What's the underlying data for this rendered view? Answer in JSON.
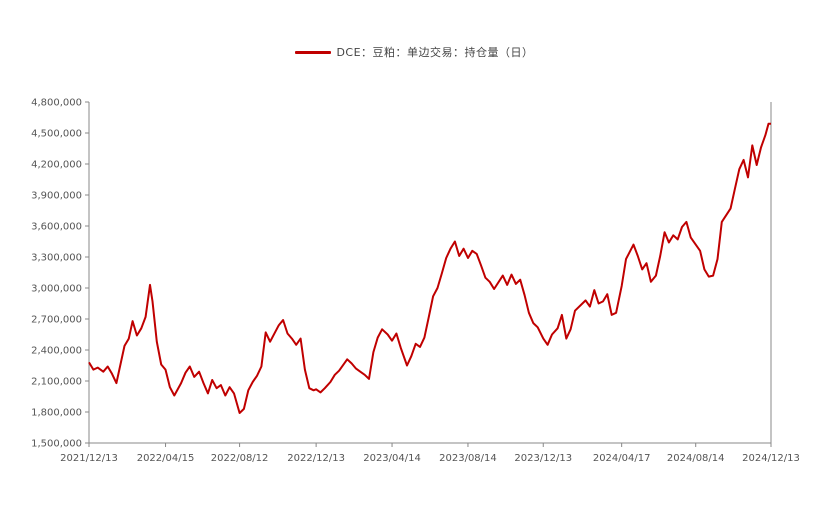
{
  "chart_data": {
    "type": "line",
    "title": "",
    "legend": {
      "label": "DCE：豆粕：单边交易：持仓量（日）",
      "placement": "top-center"
    },
    "xlabel": "",
    "ylabel": "",
    "ylim": [
      1500000,
      4800000
    ],
    "grid": false,
    "y_ticks": [
      "1,500,000",
      "1,800,000",
      "2,100,000",
      "2,400,000",
      "2,700,000",
      "3,000,000",
      "3,300,000",
      "3,600,000",
      "3,900,000",
      "4,200,000",
      "4,500,000",
      "4,800,000"
    ],
    "y_tick_values": [
      1500000,
      1800000,
      2100000,
      2400000,
      2700000,
      3000000,
      3300000,
      3600000,
      3900000,
      4200000,
      4500000,
      4800000
    ],
    "x_ticks": [
      "2021/12/13",
      "2022/04/15",
      "2022/08/12",
      "2022/12/13",
      "2023/04/14",
      "2023/08/14",
      "2023/12/13",
      "2024/04/17",
      "2024/08/14",
      "2024/12/13"
    ],
    "series": [
      {
        "name": "DCE：豆粕：单边交易：持仓量（日）",
        "color": "#c00000",
        "points": [
          [
            "2021/12/13",
            2280000
          ],
          [
            "2021/12/20",
            2210000
          ],
          [
            "2021/12/27",
            2230000
          ],
          [
            "2022/01/05",
            2190000
          ],
          [
            "2022/01/12",
            2240000
          ],
          [
            "2022/01/19",
            2170000
          ],
          [
            "2022/01/26",
            2080000
          ],
          [
            "2022/02/08",
            2440000
          ],
          [
            "2022/02/15",
            2510000
          ],
          [
            "2022/02/21",
            2680000
          ],
          [
            "2022/02/28",
            2540000
          ],
          [
            "2022/03/07",
            2610000
          ],
          [
            "2022/03/14",
            2720000
          ],
          [
            "2022/03/21",
            3030000
          ],
          [
            "2022/03/25",
            2870000
          ],
          [
            "2022/04/01",
            2480000
          ],
          [
            "2022/04/08",
            2260000
          ],
          [
            "2022/04/15",
            2210000
          ],
          [
            "2022/04/22",
            2040000
          ],
          [
            "2022/04/29",
            1960000
          ],
          [
            "2022/05/10",
            2080000
          ],
          [
            "2022/05/17",
            2180000
          ],
          [
            "2022/05/24",
            2240000
          ],
          [
            "2022/05/31",
            2140000
          ],
          [
            "2022/06/08",
            2190000
          ],
          [
            "2022/06/15",
            2080000
          ],
          [
            "2022/06/22",
            1980000
          ],
          [
            "2022/06/29",
            2110000
          ],
          [
            "2022/07/06",
            2030000
          ],
          [
            "2022/07/13",
            2060000
          ],
          [
            "2022/07/20",
            1960000
          ],
          [
            "2022/07/27",
            2040000
          ],
          [
            "2022/08/03",
            1980000
          ],
          [
            "2022/08/12",
            1790000
          ],
          [
            "2022/08/19",
            1830000
          ],
          [
            "2022/08/26",
            2010000
          ],
          [
            "2022/09/02",
            2090000
          ],
          [
            "2022/09/09",
            2150000
          ],
          [
            "2022/09/16",
            2240000
          ],
          [
            "2022/09/23",
            2570000
          ],
          [
            "2022/09/30",
            2480000
          ],
          [
            "2022/10/14",
            2640000
          ],
          [
            "2022/10/21",
            2690000
          ],
          [
            "2022/10/28",
            2560000
          ],
          [
            "2022/11/04",
            2510000
          ],
          [
            "2022/11/11",
            2450000
          ],
          [
            "2022/11/18",
            2510000
          ],
          [
            "2022/11/25",
            2210000
          ],
          [
            "2022/12/02",
            2030000
          ],
          [
            "2022/12/09",
            2010000
          ],
          [
            "2022/12/13",
            2020000
          ],
          [
            "2022/12/20",
            1990000
          ],
          [
            "2022/12/27",
            2030000
          ],
          [
            "2023/01/05",
            2090000
          ],
          [
            "2023/01/12",
            2160000
          ],
          [
            "2023/01/19",
            2200000
          ],
          [
            "2023/02/01",
            2310000
          ],
          [
            "2023/02/08",
            2270000
          ],
          [
            "2023/02/15",
            2220000
          ],
          [
            "2023/02/22",
            2190000
          ],
          [
            "2023/03/01",
            2160000
          ],
          [
            "2023/03/08",
            2120000
          ],
          [
            "2023/03/15",
            2380000
          ],
          [
            "2023/03/22",
            2520000
          ],
          [
            "2023/03/29",
            2600000
          ],
          [
            "2023/04/07",
            2550000
          ],
          [
            "2023/04/14",
            2490000
          ],
          [
            "2023/04/21",
            2560000
          ],
          [
            "2023/04/28",
            2420000
          ],
          [
            "2023/05/08",
            2250000
          ],
          [
            "2023/05/15",
            2340000
          ],
          [
            "2023/05/22",
            2460000
          ],
          [
            "2023/05/29",
            2430000
          ],
          [
            "2023/06/05",
            2520000
          ],
          [
            "2023/06/12",
            2720000
          ],
          [
            "2023/06/19",
            2920000
          ],
          [
            "2023/06/26",
            3000000
          ],
          [
            "2023/07/03",
            3140000
          ],
          [
            "2023/07/10",
            3290000
          ],
          [
            "2023/07/17",
            3380000
          ],
          [
            "2023/07/24",
            3450000
          ],
          [
            "2023/07/31",
            3310000
          ],
          [
            "2023/08/07",
            3380000
          ],
          [
            "2023/08/14",
            3290000
          ],
          [
            "2023/08/21",
            3360000
          ],
          [
            "2023/08/28",
            3330000
          ],
          [
            "2023/09/04",
            3220000
          ],
          [
            "2023/09/11",
            3100000
          ],
          [
            "2023/09/18",
            3060000
          ],
          [
            "2023/09/25",
            2990000
          ],
          [
            "2023/10/09",
            3120000
          ],
          [
            "2023/10/16",
            3030000
          ],
          [
            "2023/10/23",
            3130000
          ],
          [
            "2023/10/30",
            3040000
          ],
          [
            "2023/11/06",
            3080000
          ],
          [
            "2023/11/13",
            2930000
          ],
          [
            "2023/11/20",
            2760000
          ],
          [
            "2023/11/27",
            2660000
          ],
          [
            "2023/12/04",
            2620000
          ],
          [
            "2023/12/13",
            2510000
          ],
          [
            "2023/12/20",
            2450000
          ],
          [
            "2023/12/27",
            2550000
          ],
          [
            "2024/01/05",
            2610000
          ],
          [
            "2024/01/12",
            2740000
          ],
          [
            "2024/01/19",
            2510000
          ],
          [
            "2024/01/26",
            2600000
          ],
          [
            "2024/02/02",
            2780000
          ],
          [
            "2024/02/19",
            2880000
          ],
          [
            "2024/02/26",
            2820000
          ],
          [
            "2024/03/04",
            2980000
          ],
          [
            "2024/03/11",
            2850000
          ],
          [
            "2024/03/18",
            2870000
          ],
          [
            "2024/03/25",
            2940000
          ],
          [
            "2024/04/01",
            2740000
          ],
          [
            "2024/04/08",
            2760000
          ],
          [
            "2024/04/17",
            3020000
          ],
          [
            "2024/04/24",
            3280000
          ],
          [
            "2024/05/06",
            3420000
          ],
          [
            "2024/05/13",
            3310000
          ],
          [
            "2024/05/20",
            3180000
          ],
          [
            "2024/05/27",
            3240000
          ],
          [
            "2024/06/03",
            3060000
          ],
          [
            "2024/06/11",
            3120000
          ],
          [
            "2024/06/18",
            3310000
          ],
          [
            "2024/06/25",
            3540000
          ],
          [
            "2024/07/02",
            3440000
          ],
          [
            "2024/07/09",
            3510000
          ],
          [
            "2024/07/16",
            3470000
          ],
          [
            "2024/07/23",
            3590000
          ],
          [
            "2024/07/30",
            3640000
          ],
          [
            "2024/08/06",
            3490000
          ],
          [
            "2024/08/14",
            3420000
          ],
          [
            "2024/08/21",
            3360000
          ],
          [
            "2024/08/28",
            3180000
          ],
          [
            "2024/09/04",
            3110000
          ],
          [
            "2024/09/11",
            3120000
          ],
          [
            "2024/09/18",
            3280000
          ],
          [
            "2024/09/25",
            3640000
          ],
          [
            "2024/10/09",
            3770000
          ],
          [
            "2024/10/16",
            3960000
          ],
          [
            "2024/10/23",
            4150000
          ],
          [
            "2024/10/30",
            4240000
          ],
          [
            "2024/11/06",
            4070000
          ],
          [
            "2024/11/13",
            4380000
          ],
          [
            "2024/11/20",
            4190000
          ],
          [
            "2024/11/27",
            4360000
          ],
          [
            "2024/12/04",
            4480000
          ],
          [
            "2024/12/09",
            4590000
          ],
          [
            "2024/12/13",
            4590000
          ]
        ]
      }
    ]
  }
}
